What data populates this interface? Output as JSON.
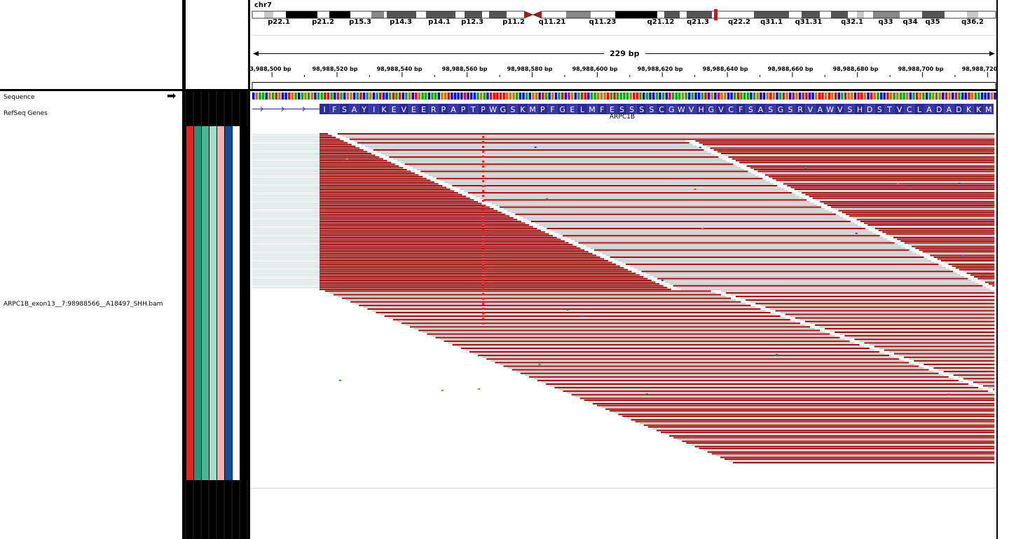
{
  "header": {
    "chromosome": "chr7",
    "span": "229 bp",
    "band_labels": [
      "p22.1",
      "p21.2",
      "p15.3",
      "p14.3",
      "p14.1",
      "p12.3",
      "p11.2",
      "q11.21",
      "q11.23",
      "q21.12",
      "q21.3",
      "q22.2",
      "q31.1",
      "q31.31",
      "q32.1",
      "q33",
      "q34",
      "q35",
      "q36.2"
    ],
    "ruler_ticks": [
      "3,988,500 bp",
      "98,988,520 bp",
      "98,988,540 bp",
      "98,988,560 bp",
      "98,988,580 bp",
      "98,988,600 bp",
      "98,988,620 bp",
      "98,988,640 bp",
      "98,988,660 bp",
      "98,988,680 bp",
      "98,988,700 bp",
      "98,988,720"
    ]
  },
  "tracks": {
    "sequence_label": "Sequence",
    "refseq_label": "RefSeq Genes",
    "bam_label": "ARPC1B_exon13__7:98988566__A18497_SHH.bam"
  },
  "gene": {
    "name": "ARPC1B",
    "amino_acids": [
      "I",
      "F",
      "S",
      "A",
      "Y",
      "I",
      "K",
      "E",
      "V",
      "E",
      "E",
      "R",
      "P",
      "A",
      "P",
      "T",
      "P",
      "W",
      "G",
      "S",
      "K",
      "M",
      "P",
      "F",
      "G",
      "E",
      "L",
      "M",
      "F",
      "E",
      "S",
      "S",
      "S",
      "S",
      "C",
      "G",
      "W",
      "V",
      "H",
      "G",
      "V",
      "C",
      "F",
      "S",
      "A",
      "S",
      "G",
      "S",
      "R",
      "V",
      "A",
      "W",
      "V",
      "S",
      "H",
      "D",
      "S",
      "T",
      "V",
      "C",
      "L",
      "A",
      "D",
      "A",
      "D",
      "K",
      "K",
      "M"
    ]
  },
  "colors": {
    "read_forward": "#990000",
    "read_reverse": "#c8c8c8",
    "amino_fill": "#2c2c8c",
    "amino_alt": "#3838a0",
    "base_a": "#00b000",
    "base_c": "#0000ff",
    "base_g": "#d17105",
    "base_t": "#ff0000",
    "attr_colors": [
      "#e52521",
      "#2a9472",
      "#4ab592",
      "#a0dccb",
      "#f5b1b1",
      "#0f4c9a",
      "#ffffff"
    ]
  },
  "icons": {
    "sequence_direction": "right-arrow-icon"
  }
}
